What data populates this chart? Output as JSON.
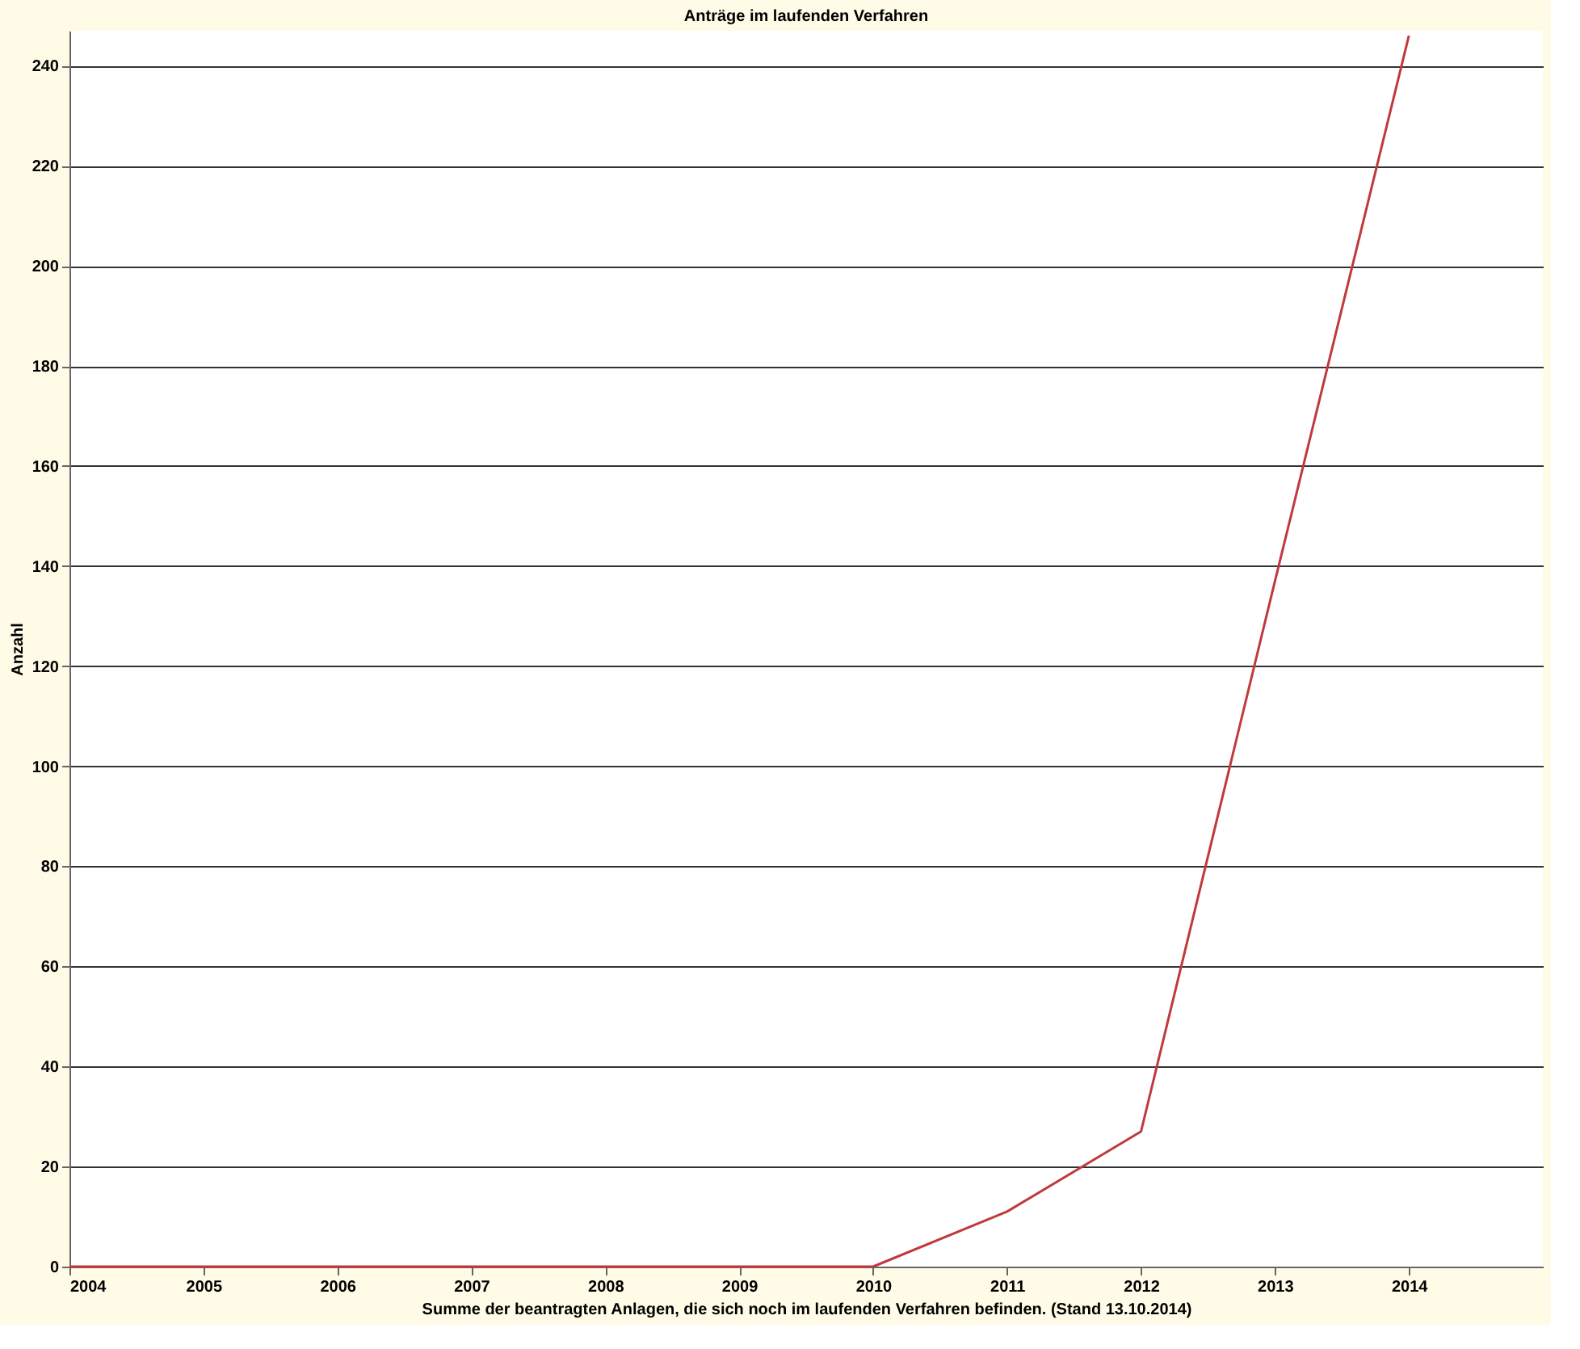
{
  "chart_data": {
    "type": "line",
    "title": "Anträge im laufenden Verfahren",
    "xlabel": "Summe der beantragten Anlagen, die sich noch im laufenden Verfahren befinden.  (Stand 13.10.2014)",
    "ylabel": "Anzahl",
    "x": [
      2004,
      2005,
      2006,
      2007,
      2008,
      2009,
      2010,
      2011,
      2012,
      2013,
      2014
    ],
    "series": [
      {
        "color": "#c0393b",
        "values": [
          0,
          0,
          0,
          0,
          0,
          0,
          0,
          11,
          27,
          137,
          246
        ]
      }
    ],
    "xlim": [
      2004,
      2015
    ],
    "xticks": [
      2004,
      2005,
      2006,
      2007,
      2008,
      2009,
      2010,
      2011,
      2012,
      2013,
      2014
    ],
    "ylim": [
      0,
      247
    ],
    "yticks": [
      0,
      20,
      40,
      60,
      80,
      100,
      120,
      140,
      160,
      180,
      200,
      220,
      240
    ],
    "grid": "y",
    "legend": false,
    "marker": "none",
    "line_style": "solid"
  }
}
